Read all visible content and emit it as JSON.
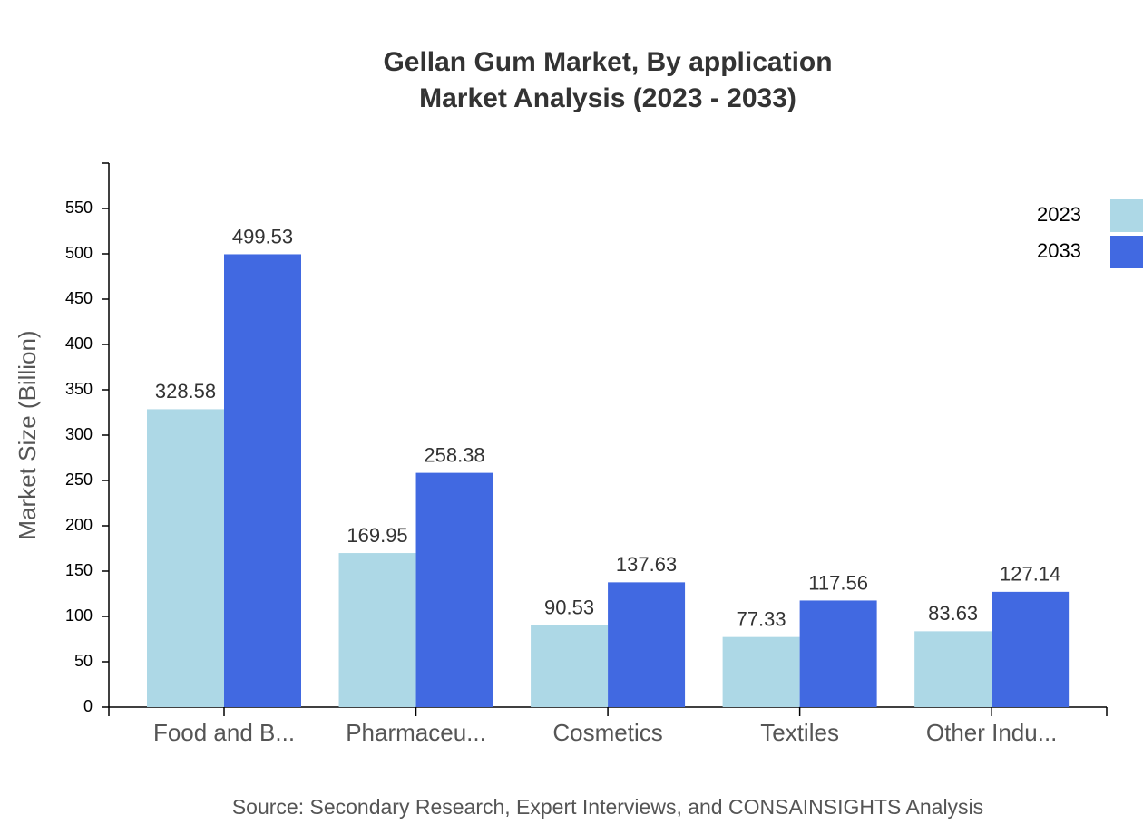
{
  "chart_data": {
    "type": "bar",
    "title": "Gellan Gum Market, By application",
    "subtitle": "Market Analysis (2023 - 2033)",
    "y_label": "Market Size (Billion)",
    "source": "Source: Secondary Research, Expert Interviews, and CONSAINSIGHTS Analysis",
    "categories": [
      "Food and B...",
      "Pharmaceu...",
      "Cosmetics",
      "Textiles",
      "Other Indu..."
    ],
    "series": [
      {
        "name": "2023",
        "color": "#add8e6",
        "values": [
          328.58,
          169.95,
          90.53,
          77.33,
          83.63
        ]
      },
      {
        "name": "2033",
        "color": "#4169e1",
        "values": [
          499.53,
          258.38,
          137.63,
          117.56,
          127.14
        ]
      }
    ],
    "ylim": [
      0,
      600
    ],
    "yticks": [
      0,
      50,
      100,
      150,
      200,
      250,
      300,
      350,
      400,
      450,
      500,
      550
    ],
    "legend": "top-right"
  }
}
